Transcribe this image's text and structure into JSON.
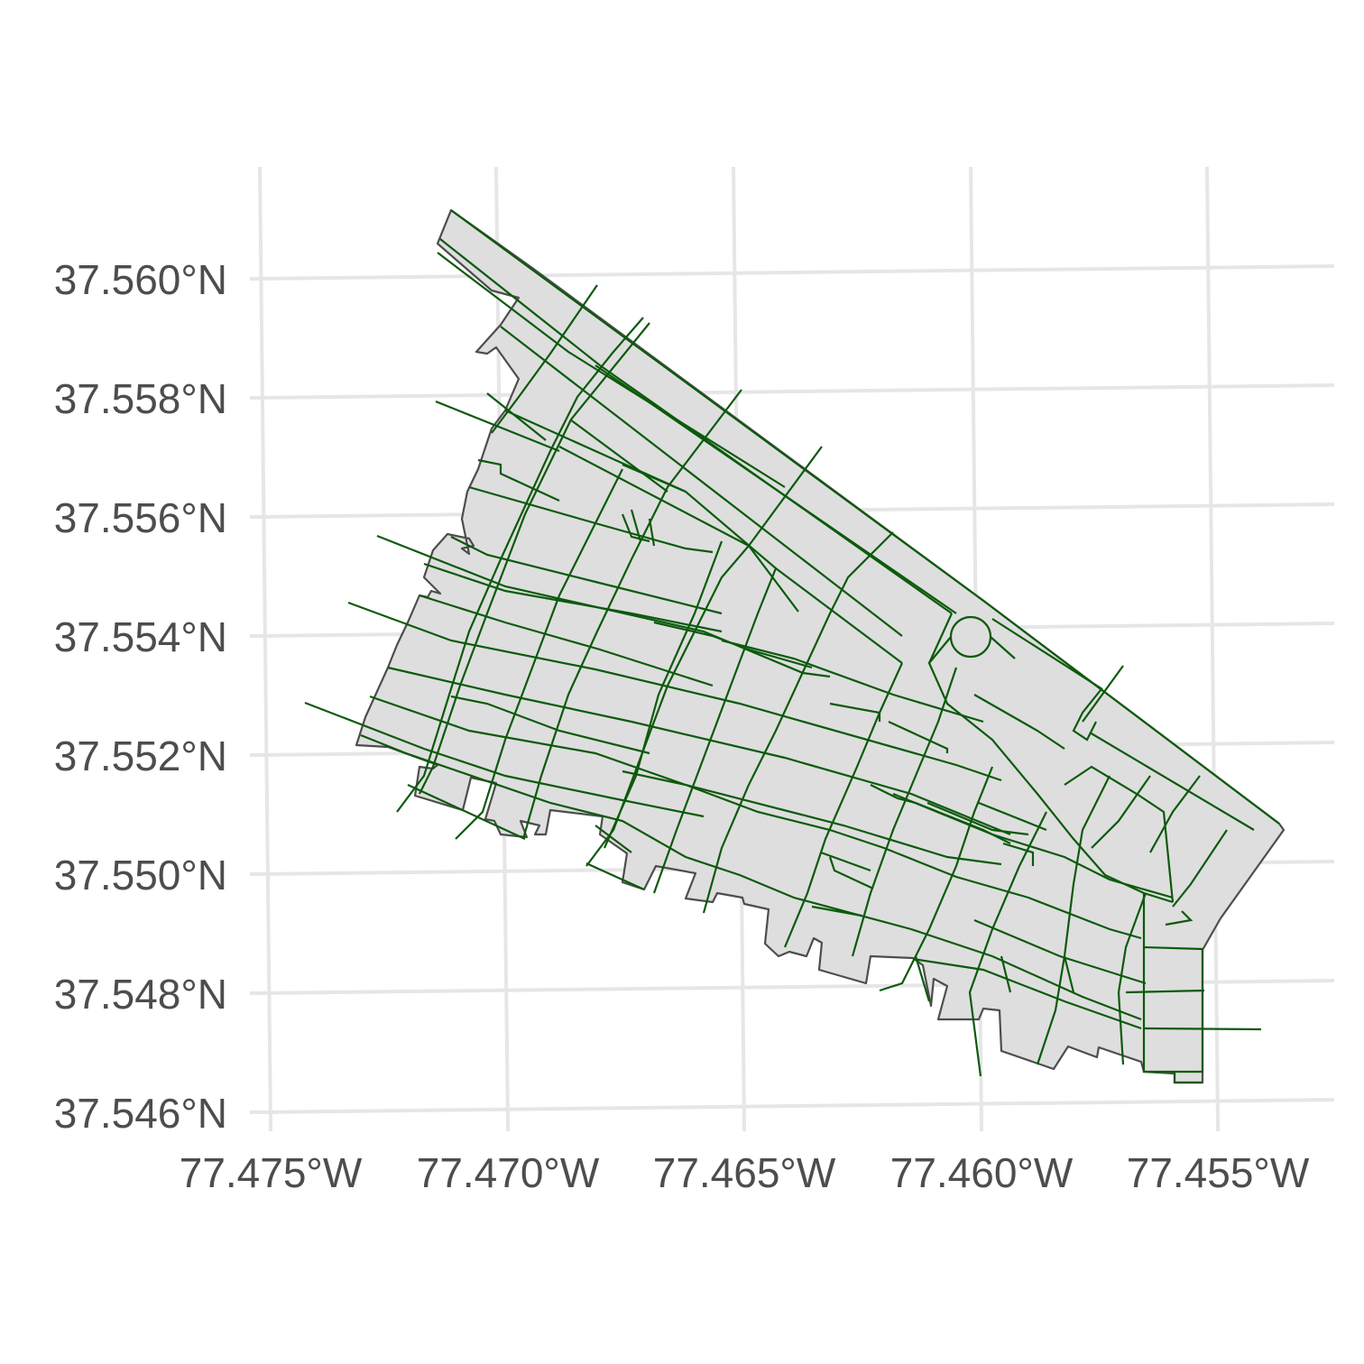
{
  "map": {
    "x_axis": {
      "ticks": [
        "77.475°W",
        "77.470°W",
        "77.465°W",
        "77.460°W",
        "77.455°W"
      ]
    },
    "y_axis": {
      "ticks": [
        "37.560°N",
        "37.558°N",
        "37.556°N",
        "37.554°N",
        "37.552°N",
        "37.550°N",
        "37.548°N",
        "37.546°N"
      ]
    },
    "colors": {
      "background": "#ffffff",
      "grid": "#e6e6e6",
      "area_fill": "#dedede",
      "area_outline": "#4d4d4d",
      "streets": "#0b5a0b",
      "tick_text": "#4d4d4d"
    },
    "layers": [
      "district-area",
      "street-network"
    ]
  }
}
